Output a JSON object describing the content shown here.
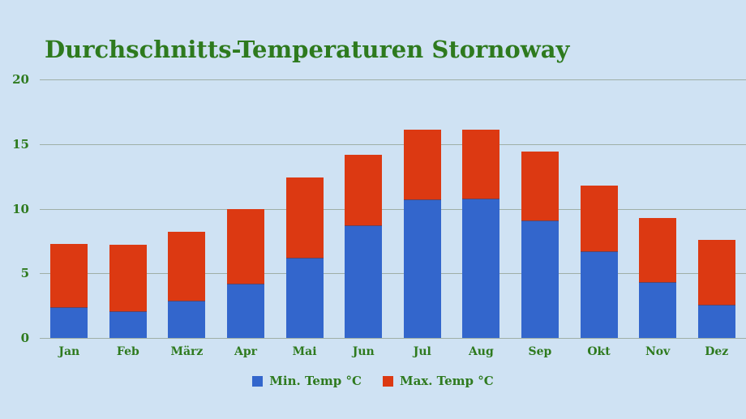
{
  "title": "Durchschnitts-Temperaturen Stornoway",
  "colors": {
    "background": "#cfe2f3",
    "title_text": "#2e7a1e",
    "axis_text": "#2e7a1e",
    "gridline": "#9fafa6",
    "min_bar": "#3366cc",
    "max_bar": "#dc3912"
  },
  "legend": {
    "position": "bottom",
    "items": [
      {
        "label": "Min. Temp °C",
        "color": "#3366cc"
      },
      {
        "label": "Max. Temp °C",
        "color": "#dc3912"
      }
    ]
  },
  "chart_data": {
    "type": "bar",
    "bar_mode": "overlay",
    "title": "Durchschnitts-Temperaturen Stornoway",
    "categories": [
      "Jan",
      "Feb",
      "März",
      "Apr",
      "Mai",
      "Jun",
      "Jul",
      "Aug",
      "Sep",
      "Okt",
      "Nov",
      "Dez"
    ],
    "series": [
      {
        "name": "Min. Temp °C",
        "color": "#3366cc",
        "values": [
          2.4,
          2.1,
          2.9,
          4.2,
          6.2,
          8.7,
          10.7,
          10.8,
          9.1,
          6.7,
          4.3,
          2.6
        ]
      },
      {
        "name": "Max. Temp °C",
        "color": "#dc3912",
        "values": [
          7.3,
          7.2,
          8.2,
          10.0,
          12.4,
          14.2,
          16.1,
          16.1,
          14.4,
          11.8,
          9.3,
          7.6
        ]
      }
    ],
    "xlabel": "",
    "ylabel": "",
    "ylim": [
      0,
      20
    ],
    "yticks": [
      0,
      5,
      10,
      15,
      20
    ],
    "grid": "horizontal",
    "legend_position": "bottom"
  }
}
